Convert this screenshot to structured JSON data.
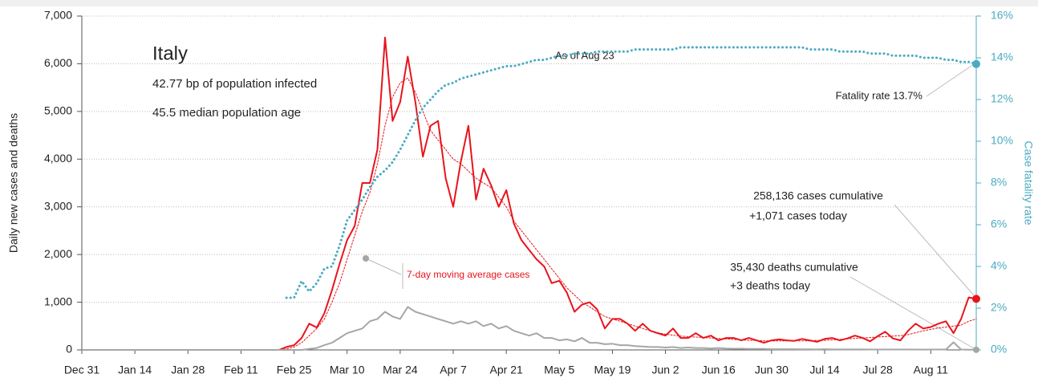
{
  "chart_data": {
    "type": "line",
    "title": "Italy",
    "subtitle": [
      "42.77 bp of population infected",
      "45.5 median population age"
    ],
    "y_label": "Daily new cases and deaths",
    "y2_label": "Case fatality rate",
    "annotations": {
      "as_of": "As of Aug 23",
      "fatality": "Fatality rate 13.7%",
      "cases": [
        "258,136 cases cumulative",
        "+1,071 cases today"
      ],
      "deaths": [
        "35,430 deaths cumulative",
        "+3 deaths today"
      ],
      "average": "7-day moving average cases"
    },
    "categories": [
      "Dec 31",
      null,
      null,
      null,
      null,
      null,
      null,
      "Jan 14",
      null,
      null,
      null,
      null,
      null,
      null,
      "Jan 28",
      null,
      null,
      null,
      null,
      null,
      null,
      "Feb 11",
      null,
      null,
      null,
      null,
      null,
      null,
      "Feb 25",
      null,
      null,
      null,
      null,
      null,
      null,
      "Mar 10",
      null,
      null,
      null,
      null,
      null,
      null,
      "Mar 24",
      null,
      null,
      null,
      null,
      null,
      null,
      "Apr 7",
      null,
      null,
      null,
      null,
      null,
      null,
      "Apr 21",
      null,
      null,
      null,
      null,
      null,
      null,
      "May 5",
      null,
      null,
      null,
      null,
      null,
      null,
      "May 19",
      null,
      null,
      null,
      null,
      null,
      null,
      "Jun 2",
      null,
      null,
      null,
      null,
      null,
      null,
      "Jun 16",
      null,
      null,
      null,
      null,
      null,
      null,
      "Jun 30",
      null,
      null,
      null,
      null,
      null,
      null,
      "Jul 14",
      null,
      null,
      null,
      null,
      null,
      null,
      "Jul 28",
      null,
      null,
      null,
      null,
      null,
      null,
      "Aug 11",
      null,
      null,
      null,
      null,
      null,
      null
    ],
    "series": [
      {
        "color": "#e8141c",
        "style": "solid",
        "width": 2,
        "values": [
          0,
          0,
          0,
          0,
          0,
          0,
          0,
          0,
          0,
          0,
          0,
          0,
          0,
          0,
          0,
          0,
          0,
          0,
          0,
          0,
          0,
          0,
          0,
          0,
          0,
          0,
          0,
          60,
          100,
          250,
          550,
          470,
          770,
          1250,
          1800,
          2300,
          2600,
          3500,
          3500,
          4200,
          6550,
          4800,
          5200,
          6150,
          5200,
          4050,
          4700,
          4800,
          3600,
          3000,
          3950,
          4700,
          3150,
          3800,
          3450,
          3000,
          3350,
          2650,
          2300,
          2100,
          1900,
          1750,
          1400,
          1450,
          1200,
          800,
          950,
          1000,
          850,
          450,
          650,
          650,
          550,
          400,
          550,
          400,
          350,
          300,
          450,
          250,
          250,
          350,
          250,
          300,
          200,
          250,
          250,
          200,
          250,
          200,
          150,
          200,
          220,
          200,
          190,
          230,
          200,
          170,
          230,
          250,
          200,
          240,
          300,
          250,
          180,
          290,
          380,
          240,
          200,
          400,
          550,
          450,
          480,
          550,
          600,
          350,
          650,
          1100,
          1071
        ]
      },
      {
        "color": "#e8141c",
        "style": "dotted",
        "width": 1,
        "values": [
          0,
          0,
          0,
          0,
          0,
          0,
          0,
          0,
          0,
          0,
          0,
          0,
          0,
          0,
          0,
          0,
          0,
          0,
          0,
          0,
          0,
          0,
          0,
          0,
          0,
          0,
          0,
          20,
          60,
          150,
          300,
          450,
          650,
          1000,
          1400,
          1900,
          2400,
          2900,
          3300,
          3900,
          4700,
          5300,
          5600,
          5700,
          5400,
          5000,
          4600,
          4400,
          4200,
          4000,
          3900,
          3750,
          3600,
          3500,
          3400,
          3200,
          3000,
          2700,
          2500,
          2300,
          2100,
          1900,
          1700,
          1500,
          1300,
          1150,
          1000,
          900,
          800,
          700,
          650,
          600,
          550,
          500,
          450,
          400,
          360,
          330,
          310,
          290,
          280,
          270,
          260,
          250,
          240,
          230,
          220,
          210,
          200,
          200,
          190,
          190,
          190,
          190,
          190,
          190,
          190,
          200,
          200,
          210,
          220,
          230,
          240,
          250,
          260,
          270,
          280,
          290,
          300,
          320,
          360,
          400,
          430,
          460,
          480,
          500,
          520,
          600,
          650
        ]
      },
      {
        "color": "#a6a6a6",
        "style": "solid",
        "width": 2,
        "values": [
          0,
          0,
          0,
          0,
          0,
          0,
          0,
          0,
          0,
          0,
          0,
          0,
          0,
          0,
          0,
          0,
          0,
          0,
          0,
          0,
          0,
          0,
          0,
          0,
          0,
          0,
          0,
          0,
          0,
          0,
          20,
          40,
          100,
          150,
          250,
          350,
          400,
          450,
          600,
          650,
          800,
          700,
          650,
          900,
          800,
          750,
          700,
          650,
          600,
          550,
          600,
          550,
          600,
          500,
          550,
          450,
          500,
          400,
          350,
          300,
          350,
          250,
          250,
          200,
          220,
          180,
          250,
          150,
          150,
          120,
          130,
          100,
          100,
          80,
          70,
          60,
          60,
          50,
          60,
          40,
          50,
          40,
          40,
          30,
          40,
          30,
          25,
          25,
          20,
          20,
          20,
          15,
          15,
          15,
          15,
          12,
          12,
          10,
          15,
          10,
          10,
          10,
          10,
          10,
          8,
          8,
          8,
          8,
          8,
          8,
          8,
          6,
          8,
          8,
          8,
          160,
          8,
          5,
          3
        ]
      },
      {
        "color": "#4aabc2",
        "style": "dotted",
        "width": 3,
        "axis": "y2",
        "values": [
          null,
          null,
          null,
          null,
          null,
          null,
          null,
          null,
          null,
          null,
          null,
          null,
          null,
          null,
          null,
          null,
          null,
          null,
          null,
          null,
          null,
          null,
          null,
          null,
          null,
          null,
          null,
          2.5,
          2.5,
          3.3,
          2.8,
          3.2,
          3.9,
          4.0,
          5.0,
          6.2,
          6.7,
          7.2,
          7.8,
          8.3,
          8.6,
          9.0,
          9.6,
          10.3,
          11.0,
          11.6,
          12.0,
          12.4,
          12.7,
          12.8,
          13.0,
          13.1,
          13.2,
          13.3,
          13.4,
          13.5,
          13.6,
          13.6,
          13.7,
          13.8,
          13.9,
          13.9,
          14.0,
          14.1,
          14.1,
          14.2,
          14.2,
          14.2,
          14.3,
          14.3,
          14.3,
          14.3,
          14.3,
          14.4,
          14.4,
          14.4,
          14.4,
          14.4,
          14.4,
          14.5,
          14.5,
          14.5,
          14.5,
          14.5,
          14.5,
          14.5,
          14.5,
          14.5,
          14.5,
          14.5,
          14.5,
          14.5,
          14.5,
          14.5,
          14.5,
          14.5,
          14.4,
          14.4,
          14.4,
          14.4,
          14.3,
          14.3,
          14.3,
          14.3,
          14.2,
          14.2,
          14.2,
          14.1,
          14.1,
          14.1,
          14.1,
          14.0,
          14.0,
          14.0,
          13.9,
          13.9,
          13.8,
          13.8,
          13.7
        ]
      }
    ],
    "ylim": [
      0,
      7000
    ],
    "yticks": [
      0,
      {
        "value": 1000,
        "label": "1,000"
      },
      {
        "value": 2000,
        "label": "2,000"
      },
      {
        "value": 3000,
        "label": "3,000"
      },
      {
        "value": 4000,
        "label": "4,000"
      },
      {
        "value": 5000,
        "label": "5,000"
      },
      {
        "value": 6000,
        "label": "6,000"
      },
      {
        "value": 7000,
        "label": "7,000"
      }
    ],
    "y2lim": [
      0,
      16
    ],
    "y2ticks": [
      {
        "value": 0,
        "label": "0%"
      },
      {
        "value": 2,
        "label": "2%"
      },
      {
        "value": 4,
        "label": "4%"
      },
      {
        "value": 6,
        "label": "6%"
      },
      {
        "value": 8,
        "label": "8%"
      },
      {
        "value": 10,
        "label": "10%"
      },
      {
        "value": 12,
        "label": "12%"
      },
      {
        "value": 14,
        "label": "14%"
      },
      {
        "value": 16,
        "label": "16%"
      }
    ],
    "grid": true
  }
}
